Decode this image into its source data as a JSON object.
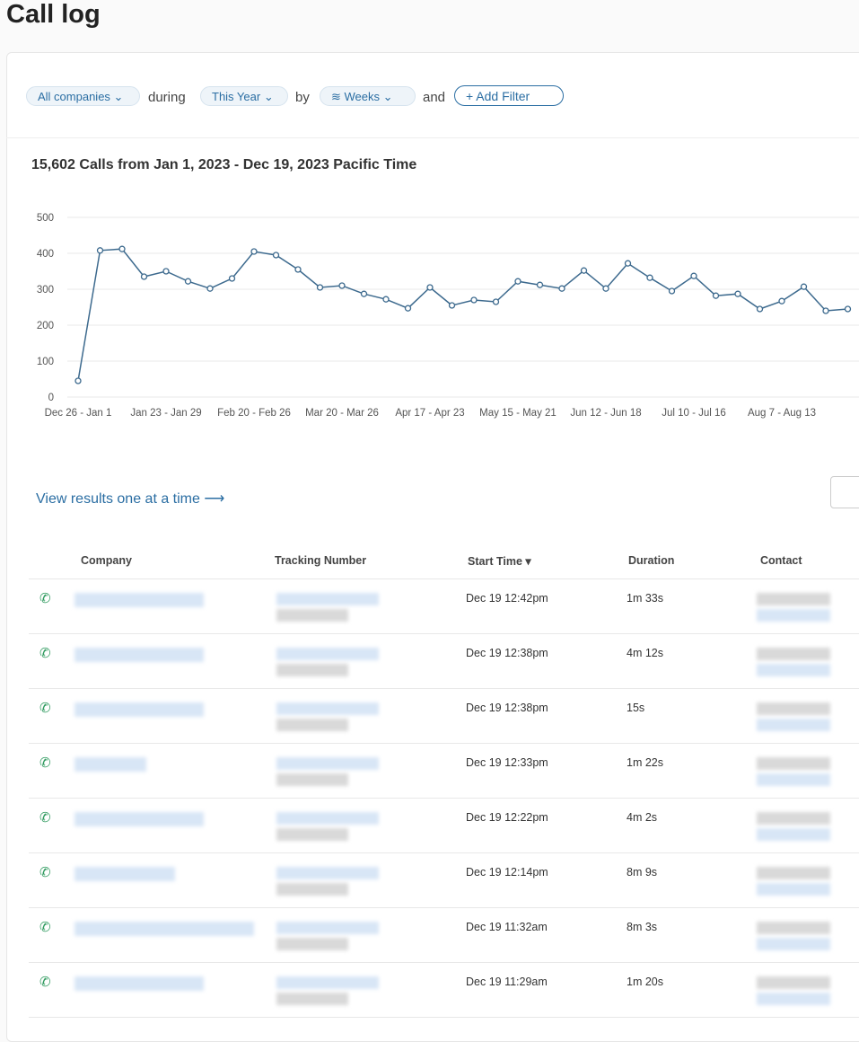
{
  "header": {
    "title": "Call log"
  },
  "filters": {
    "company": "All companies",
    "during": "during",
    "period": "This Year",
    "by": "by",
    "interval": "Weeks",
    "and": "and",
    "add": "Add Filter"
  },
  "chart_data": {
    "type": "line",
    "title": "15,602 Calls from Jan 1, 2023 - Dec 19, 2023 Pacific Time",
    "categories": [
      "Dec 26 - Jan 1",
      null,
      null,
      null,
      "Jan 23 - Jan 29",
      null,
      null,
      null,
      "Feb 20 - Feb 26",
      null,
      null,
      null,
      "Mar 20 - Mar 26",
      null,
      null,
      null,
      "Apr 17 - Apr 23",
      null,
      null,
      null,
      "May 15 - May 21",
      null,
      null,
      null,
      "Jun 12 - Jun 18",
      null,
      null,
      null,
      "Jul 10 - Jul 16",
      null,
      null,
      null,
      "Aug 7 - Aug 13",
      null,
      null,
      null
    ],
    "values": [
      45,
      408,
      412,
      335,
      350,
      322,
      302,
      330,
      405,
      395,
      355,
      305,
      310,
      287,
      272,
      247,
      305,
      255,
      270,
      265,
      322,
      312,
      302,
      352,
      302,
      372,
      332,
      295,
      337,
      282,
      287,
      245,
      267,
      307,
      240,
      245
    ],
    "color": "#3d6a8e",
    "ylim": [
      0,
      500
    ],
    "yticks": [
      0,
      100,
      200,
      300,
      400,
      500
    ],
    "grid": true
  },
  "link": "View results one at a time",
  "table": {
    "columns": [
      "Company",
      "Tracking Number",
      "Start Time",
      "Duration",
      "Contact"
    ],
    "rows": [
      {
        "start_time": "Dec 19 12:42pm",
        "duration": "1m 33s"
      },
      {
        "start_time": "Dec 19 12:38pm",
        "duration": "4m 12s"
      },
      {
        "start_time": "Dec 19 12:38pm",
        "duration": "15s"
      },
      {
        "start_time": "Dec 19 12:33pm",
        "duration": "1m 22s"
      },
      {
        "start_time": "Dec 19 12:22pm",
        "duration": "4m 2s"
      },
      {
        "start_time": "Dec 19 12:14pm",
        "duration": "8m 9s"
      },
      {
        "start_time": "Dec 19 11:32am",
        "duration": "8m 3s"
      },
      {
        "start_time": "Dec 19 11:29am",
        "duration": "1m 20s"
      }
    ]
  }
}
